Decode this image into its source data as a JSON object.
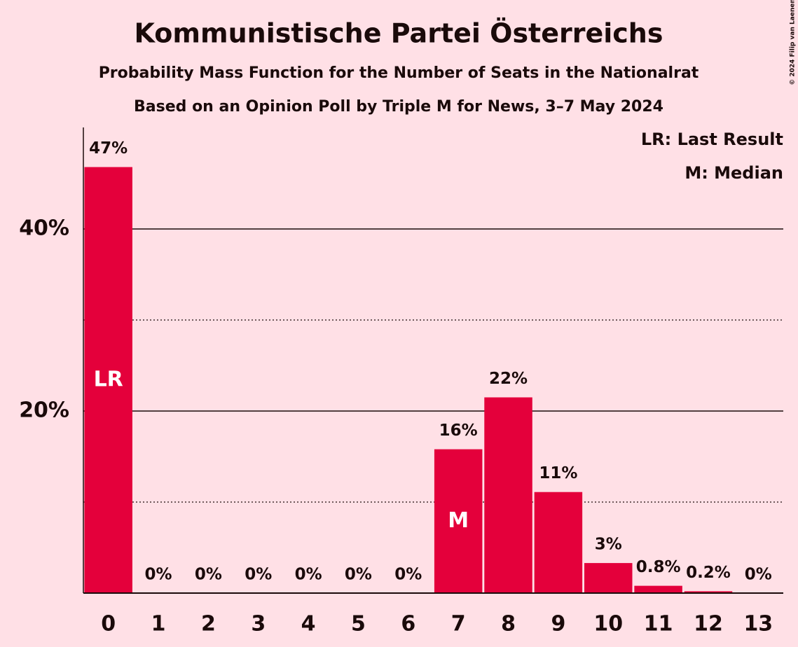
{
  "chart_data": {
    "type": "bar",
    "title": "Kommunistische Partei Österreichs",
    "subtitle": "Probability Mass Function for the Number of Seats in the Nationalrat",
    "subtitle2": "Based on an Opinion Poll by Triple M for News, 3–7 May 2024",
    "credit": "© 2024 Filip van Laenen",
    "categories": [
      "0",
      "1",
      "2",
      "3",
      "4",
      "5",
      "6",
      "7",
      "8",
      "9",
      "10",
      "11",
      "12",
      "13"
    ],
    "values": [
      46.8,
      0,
      0,
      0,
      0,
      0,
      0,
      15.8,
      21.5,
      11.1,
      3.3,
      0.8,
      0.2,
      0
    ],
    "value_labels": [
      "47%",
      "0%",
      "0%",
      "0%",
      "0%",
      "0%",
      "0%",
      "16%",
      "22%",
      "11%",
      "3%",
      "0.8%",
      "0.2%",
      "0%"
    ],
    "color": "#e4003b",
    "ylim": [
      0,
      51
    ],
    "yticks": [
      {
        "value": 20,
        "label": "20%"
      },
      {
        "value": 40,
        "label": "40%"
      }
    ],
    "minor_grid": [
      10,
      30
    ],
    "markers": [
      {
        "index": 0,
        "label": "LR"
      },
      {
        "index": 7,
        "label": "M"
      }
    ],
    "legend": [
      "LR: Last Result",
      "M: Median"
    ]
  }
}
